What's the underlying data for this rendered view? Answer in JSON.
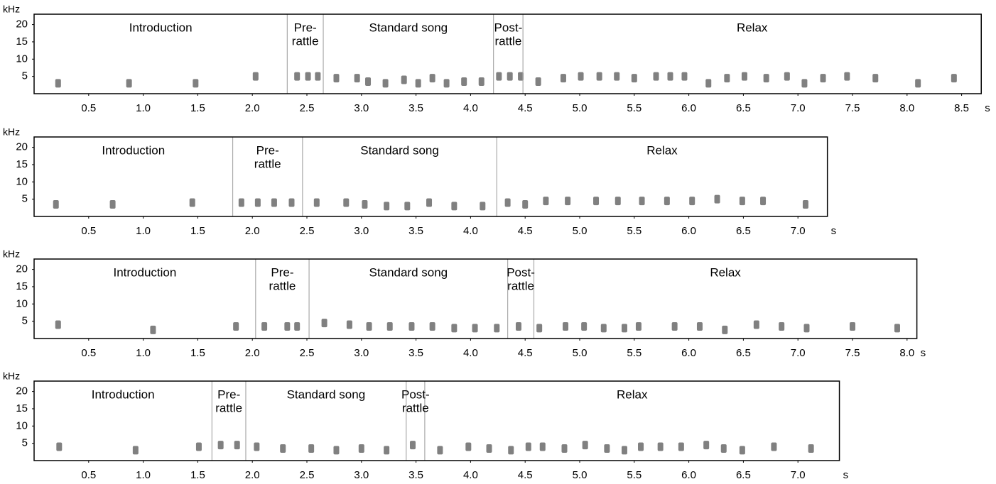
{
  "chart_data": [
    {
      "type": "spectrogram",
      "y_label": "kHz",
      "x_label": "s",
      "color": "#4a4a4a",
      "xlim": [
        0,
        8.68
      ],
      "ylim": [
        0,
        23
      ],
      "yticks": [
        5,
        10,
        15,
        20
      ],
      "xticks": [
        0.5,
        {
          "value": 1,
          "label": "1.0"
        },
        1.5,
        {
          "value": 2,
          "label": "2.0"
        },
        2.5,
        {
          "value": 3,
          "label": "3.0"
        },
        3.5,
        {
          "value": 4,
          "label": "4.0"
        },
        4.5,
        {
          "value": 5,
          "label": "5.0"
        },
        5.5,
        {
          "value": 6,
          "label": "6.0"
        },
        6.5,
        {
          "value": 7,
          "label": "7.0"
        },
        7.5,
        {
          "value": 8,
          "label": "8.0"
        },
        8.5
      ],
      "sections": [
        [
          "Introduction"
        ],
        [
          "Pre-",
          "rattle"
        ],
        [
          "Standard song"
        ],
        [
          "Post-",
          "rattle"
        ],
        [
          "Relax"
        ]
      ],
      "boundaries": [
        2.32,
        2.65,
        4.21,
        4.48
      ],
      "x": [
        0.22,
        0.87,
        1.48,
        2.03,
        2.41,
        2.51,
        2.6,
        2.77,
        2.96,
        3.06,
        3.22,
        3.39,
        3.52,
        3.65,
        3.78,
        3.94,
        4.1,
        4.26,
        4.36,
        4.46,
        4.62,
        4.85,
        5.01,
        5.18,
        5.34,
        5.5,
        5.7,
        5.83,
        5.96,
        6.18,
        6.35,
        6.51,
        6.71,
        6.9,
        7.06,
        7.23,
        7.45,
        7.71,
        8.1,
        8.43
      ],
      "values": [
        3,
        3,
        3,
        5,
        5,
        5,
        5,
        4.5,
        4.5,
        3.5,
        3,
        4,
        3,
        4.5,
        3,
        3.5,
        3.5,
        5,
        5,
        5,
        3.5,
        4.5,
        5,
        5,
        5,
        4.5,
        5,
        5,
        5,
        3,
        4.5,
        5,
        4.5,
        5,
        3,
        4.5,
        5,
        4.5,
        3,
        4.5
      ]
    },
    {
      "type": "spectrogram",
      "y_label": "kHz",
      "x_label": "s",
      "color": "#4a4a4a",
      "xlim": [
        0,
        7.27
      ],
      "ylim": [
        0,
        23
      ],
      "yticks": [
        5,
        10,
        15,
        20
      ],
      "xticks": [
        0.5,
        {
          "value": 1,
          "label": "1.0"
        },
        1.5,
        {
          "value": 2,
          "label": "2.0"
        },
        2.5,
        {
          "value": 3,
          "label": "3.0"
        },
        3.5,
        {
          "value": 4,
          "label": "4.0"
        },
        4.5,
        {
          "value": 5,
          "label": "5.0"
        },
        5.5,
        {
          "value": 6,
          "label": "6.0"
        },
        6.5,
        {
          "value": 7,
          "label": "7.0"
        }
      ],
      "sections": [
        [
          "Introduction"
        ],
        [
          "Pre-",
          "rattle"
        ],
        [
          "Standard song"
        ],
        [
          "Relax"
        ]
      ],
      "boundaries": [
        1.82,
        2.46,
        4.24
      ],
      "x": [
        0.2,
        0.72,
        1.45,
        1.9,
        2.05,
        2.2,
        2.36,
        2.59,
        2.86,
        3.03,
        3.23,
        3.42,
        3.62,
        3.85,
        4.11,
        4.34,
        4.5,
        4.69,
        4.89,
        5.15,
        5.35,
        5.57,
        5.8,
        6.03,
        6.26,
        6.49,
        6.68,
        7.07
      ],
      "values": [
        3.5,
        3.5,
        4,
        4,
        4,
        4,
        4,
        4,
        4,
        3.5,
        3,
        3,
        4,
        3,
        3,
        4,
        3.5,
        4.5,
        4.5,
        4.5,
        4.5,
        4.5,
        4.5,
        4.5,
        5,
        4.5,
        4.5,
        3.5
      ]
    },
    {
      "type": "spectrogram",
      "y_label": "kHz",
      "x_label": "s",
      "color": "#4a4a4a",
      "xlim": [
        0,
        8.09
      ],
      "ylim": [
        0,
        23
      ],
      "yticks": [
        5,
        10,
        15,
        20
      ],
      "xticks": [
        0.5,
        {
          "value": 1,
          "label": "1.0"
        },
        1.5,
        {
          "value": 2,
          "label": "2.0"
        },
        2.5,
        {
          "value": 3,
          "label": "3.0"
        },
        3.5,
        {
          "value": 4,
          "label": "4.0"
        },
        4.5,
        {
          "value": 5,
          "label": "5.0"
        },
        5.5,
        {
          "value": 6,
          "label": "6.0"
        },
        6.5,
        {
          "value": 7,
          "label": "7.0"
        },
        7.5,
        {
          "value": 8,
          "label": "8.0"
        }
      ],
      "sections": [
        [
          "Introduction"
        ],
        [
          "Pre-",
          "rattle"
        ],
        [
          "Standard song"
        ],
        [
          "Post-",
          "rattle"
        ],
        [
          "Relax"
        ]
      ],
      "boundaries": [
        2.03,
        2.52,
        4.34,
        4.58
      ],
      "x": [
        0.22,
        1.09,
        1.85,
        2.11,
        2.32,
        2.41,
        2.66,
        2.89,
        3.07,
        3.26,
        3.46,
        3.65,
        3.85,
        4.04,
        4.24,
        4.44,
        4.63,
        4.87,
        5.04,
        5.22,
        5.41,
        5.54,
        5.87,
        6.1,
        6.33,
        6.62,
        6.85,
        7.08,
        7.5,
        7.91
      ],
      "values": [
        4,
        2.5,
        3.5,
        3.5,
        3.5,
        3.5,
        4.5,
        4,
        3.5,
        3.5,
        3.5,
        3.5,
        3,
        3,
        3,
        3.5,
        3,
        3.5,
        3.5,
        3,
        3,
        3.5,
        3.5,
        3.5,
        2.5,
        4,
        3.5,
        3,
        3.5,
        3
      ]
    },
    {
      "type": "spectrogram",
      "y_label": "kHz",
      "x_label": "s",
      "color": "#4a4a4a",
      "xlim": [
        0,
        7.38
      ],
      "ylim": [
        0,
        23
      ],
      "yticks": [
        5,
        10,
        15,
        20
      ],
      "xticks": [
        0.5,
        {
          "value": 1,
          "label": "1.0"
        },
        1.5,
        {
          "value": 2,
          "label": "2.0"
        },
        2.5,
        {
          "value": 3,
          "label": "3.0"
        },
        3.5,
        {
          "value": 4,
          "label": "4.0"
        },
        4.5,
        {
          "value": 5,
          "label": "5.0"
        },
        5.5,
        {
          "value": 6,
          "label": "6.0"
        },
        6.5,
        {
          "value": 7,
          "label": "7.0"
        }
      ],
      "sections": [
        [
          "Introduction"
        ],
        [
          "Pre-",
          "rattle"
        ],
        [
          "Standard song"
        ],
        [
          "Post-",
          "rattle"
        ],
        [
          "Relax"
        ]
      ],
      "boundaries": [
        1.63,
        1.94,
        3.41,
        3.58
      ],
      "x": [
        0.23,
        0.93,
        1.51,
        1.71,
        1.86,
        2.04,
        2.28,
        2.54,
        2.77,
        3.0,
        3.23,
        3.47,
        3.72,
        3.98,
        4.17,
        4.37,
        4.53,
        4.66,
        4.86,
        5.05,
        5.25,
        5.41,
        5.56,
        5.74,
        5.93,
        6.16,
        6.32,
        6.49,
        6.78,
        7.12
      ],
      "values": [
        4,
        3,
        4,
        4.5,
        4.5,
        4,
        3.5,
        3.5,
        3,
        3.5,
        3,
        4.5,
        3,
        4,
        3.5,
        3,
        4,
        4,
        3.5,
        4.5,
        3.5,
        3,
        4,
        4,
        4,
        4.5,
        3.5,
        3,
        4,
        3.5
      ]
    }
  ]
}
